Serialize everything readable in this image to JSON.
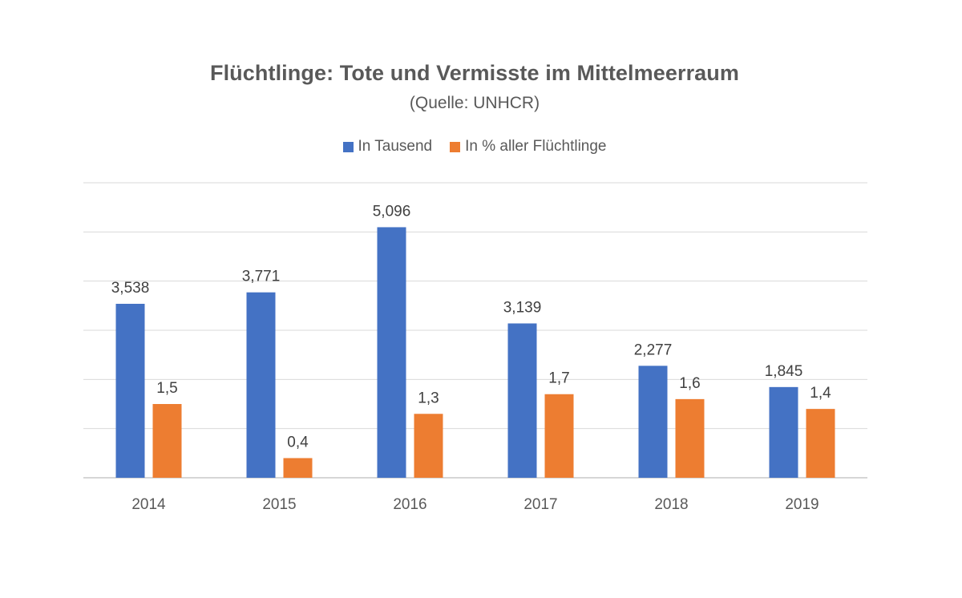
{
  "chart_data": {
    "type": "bar",
    "title": "Flüchtlinge: Tote und Vermisste im Mittelmeerraum",
    "subtitle": "(Quelle: UNHCR)",
    "xlabel": "",
    "ylabel": "",
    "categories": [
      "2014",
      "2015",
      "2016",
      "2017",
      "2018",
      "2019"
    ],
    "series": [
      {
        "name": "In Tausend",
        "color": "#4472C4",
        "values": [
          3.538,
          3.771,
          5.096,
          3.139,
          2.277,
          1.845
        ],
        "labels": [
          "3,538",
          "3,771",
          "5,096",
          "3,139",
          "2,277",
          "1,845"
        ]
      },
      {
        "name": "In % aller Flüchtlinge",
        "color": "#ED7D31",
        "values": [
          1.5,
          0.4,
          1.3,
          1.7,
          1.6,
          1.4
        ],
        "labels": [
          "1,5",
          "0,4",
          "1,3",
          "1,7",
          "1,6",
          "1,4"
        ]
      }
    ],
    "ylim": [
      0,
      6
    ],
    "gridlines": [
      0,
      1,
      2,
      3,
      4,
      5,
      6
    ],
    "grid": true,
    "legend_position": "top",
    "axis_values_shown": false
  }
}
